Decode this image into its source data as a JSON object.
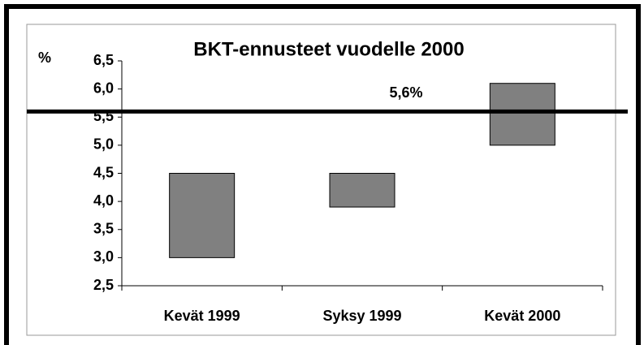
{
  "chart_data": {
    "type": "range_bar",
    "title": "BKT-ennusteet vuodelle 2000",
    "y_label": "%",
    "categories": [
      "Kevät 1999",
      "Syksy 1999",
      "Kevät 2000"
    ],
    "low": [
      3.0,
      3.9,
      5.0
    ],
    "high": [
      4.5,
      4.5,
      6.1
    ],
    "color": "#808080",
    "reference_line": {
      "value": 5.6,
      "label": "5,6%"
    },
    "ylim": [
      2.5,
      6.5
    ],
    "yticks": [
      {
        "value": 2.5,
        "label": "2,5"
      },
      {
        "value": 3.0,
        "label": "3,0"
      },
      {
        "value": 3.5,
        "label": "3,5"
      },
      {
        "value": 4.0,
        "label": "4,0"
      },
      {
        "value": 4.5,
        "label": "4,5"
      },
      {
        "value": 5.0,
        "label": "5,0"
      },
      {
        "value": 5.5,
        "label": "5,5"
      },
      {
        "value": 6.0,
        "label": "6,0"
      },
      {
        "value": 6.5,
        "label": "6,5"
      }
    ],
    "grid": false
  }
}
